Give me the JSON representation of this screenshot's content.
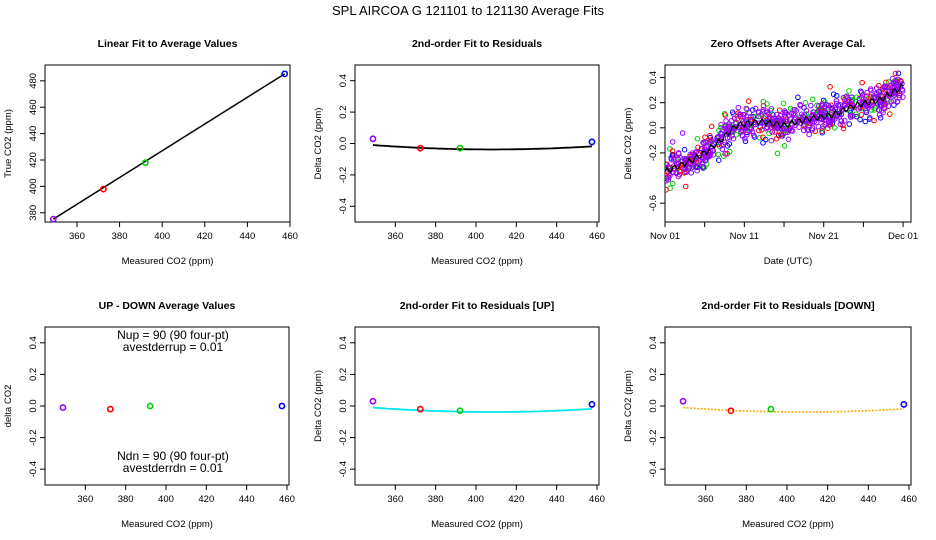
{
  "suptitle": "SPL   AIRCOA G   121101 to 121130   Average Fits",
  "chart_data": [
    {
      "type": "line",
      "title": "Linear Fit to Average Values",
      "xlabel": "Measured CO2 (ppm)",
      "ylabel": "True CO2 (ppm)",
      "xlim": [
        345,
        460
      ],
      "ylim": [
        373,
        492
      ],
      "xticks": [
        360,
        380,
        400,
        420,
        440,
        460
      ],
      "yticks": [
        380,
        400,
        420,
        440,
        460,
        480
      ],
      "points": [
        {
          "x": 348.9,
          "y": 375.2,
          "color": "#9900ff"
        },
        {
          "x": 372.4,
          "y": 397.9,
          "color": "#ff0000"
        },
        {
          "x": 392.1,
          "y": 418.0,
          "color": "#00cc00"
        },
        {
          "x": 457.5,
          "y": 485.3,
          "color": "#0000ff"
        }
      ],
      "fit_line": {
        "x": [
          348.9,
          457.5
        ],
        "y": [
          375.2,
          485.3
        ],
        "color": "#000000"
      }
    },
    {
      "type": "line",
      "title": "2nd-order Fit to Residuals",
      "xlabel": "Measured CO2 (ppm)",
      "ylabel": "Delta CO2 (ppm)",
      "xlim": [
        340,
        461
      ],
      "ylim": [
        -0.5,
        0.5
      ],
      "xticks": [
        360,
        380,
        400,
        420,
        440,
        460
      ],
      "yticks": [
        -0.4,
        -0.2,
        0.0,
        0.2,
        0.4
      ],
      "points": [
        {
          "x": 348.9,
          "y": 0.03,
          "color": "#9900ff"
        },
        {
          "x": 372.4,
          "y": -0.03,
          "color": "#ff0000"
        },
        {
          "x": 392.1,
          "y": -0.03,
          "color": "#00cc00"
        },
        {
          "x": 457.5,
          "y": 0.01,
          "color": "#0000ff"
        }
      ],
      "fit_curve": {
        "a": 8.1e-06,
        "vertex_x": 408,
        "vertex_y": -0.038,
        "from": 348.9,
        "to": 457.5,
        "color": "#000000"
      }
    },
    {
      "type": "scatter",
      "title": "Zero Offsets After Average Cal.",
      "xlabel": "Date (UTC)",
      "ylabel": "Delta CO2 (ppm)",
      "xlim": [
        0,
        31
      ],
      "ylim": [
        -0.75,
        0.5
      ],
      "xtick_labels": [
        "Nov 01",
        "Nov 11",
        "Nov 21",
        "Dec 01"
      ],
      "xtick_values": [
        0,
        10,
        20,
        30
      ],
      "yticks": [
        -0.6,
        -0.2,
        0.0,
        0.2,
        0.4
      ],
      "trend": [
        {
          "x": 0,
          "y": -0.35
        },
        {
          "x": 3,
          "y": -0.27
        },
        {
          "x": 5,
          "y": -0.2
        },
        {
          "x": 7,
          "y": -0.1
        },
        {
          "x": 9,
          "y": 0.02
        },
        {
          "x": 12,
          "y": 0.05
        },
        {
          "x": 15,
          "y": 0.02
        },
        {
          "x": 18,
          "y": 0.07
        },
        {
          "x": 21,
          "y": 0.1
        },
        {
          "x": 24,
          "y": 0.18
        },
        {
          "x": 27,
          "y": 0.22
        },
        {
          "x": 30,
          "y": 0.33
        }
      ],
      "series": [
        {
          "name": "purple",
          "color": "#9900ff"
        },
        {
          "name": "red",
          "color": "#ff0000"
        },
        {
          "name": "green",
          "color": "#00cc00"
        },
        {
          "name": "blue",
          "color": "#0000ff"
        }
      ]
    },
    {
      "type": "scatter",
      "title": "UP - DOWN Average Values",
      "xlabel": "Measured CO2 (ppm)",
      "ylabel": "delta CO2",
      "xlim": [
        340,
        461
      ],
      "ylim": [
        -0.5,
        0.5
      ],
      "xticks": [
        360,
        380,
        400,
        420,
        440,
        460
      ],
      "yticks": [
        -0.4,
        -0.2,
        0.0,
        0.2,
        0.4
      ],
      "points": [
        {
          "x": 348.9,
          "y": -0.01,
          "color": "#9900ff"
        },
        {
          "x": 372.4,
          "y": -0.02,
          "color": "#ff0000"
        },
        {
          "x": 392.1,
          "y": 0.0,
          "color": "#00cc00"
        },
        {
          "x": 457.5,
          "y": 0.0,
          "color": "#0000ff"
        }
      ],
      "annotations": [
        "Nup = 90 (90 four-pt)",
        "avestderrup =  0.01",
        "Ndn = 90 (90 four-pt)",
        "avestderrdn =  0.01"
      ]
    },
    {
      "type": "line",
      "title": "2nd-order Fit to Residuals [UP]",
      "xlabel": "Measured CO2 (ppm)",
      "ylabel": "Delta CO2 (ppm)",
      "xlim": [
        340,
        461
      ],
      "ylim": [
        -0.5,
        0.5
      ],
      "xticks": [
        360,
        380,
        400,
        420,
        440,
        460
      ],
      "yticks": [
        -0.4,
        -0.2,
        0.0,
        0.2,
        0.4
      ],
      "points": [
        {
          "x": 348.9,
          "y": 0.03,
          "color": "#9900ff"
        },
        {
          "x": 372.4,
          "y": -0.02,
          "color": "#ff0000"
        },
        {
          "x": 392.1,
          "y": -0.03,
          "color": "#00cc00"
        },
        {
          "x": 457.5,
          "y": 0.01,
          "color": "#0000ff"
        }
      ],
      "fit_curve": {
        "a": 8.1e-06,
        "vertex_x": 408,
        "vertex_y": -0.038,
        "from": 348.9,
        "to": 457.5,
        "color": "#00e5ee"
      }
    },
    {
      "type": "line",
      "title": "2nd-order Fit to Residuals [DOWN]",
      "xlabel": "Measured CO2 (ppm)",
      "ylabel": "Delta CO2 (ppm)",
      "xlim": [
        340,
        461
      ],
      "ylim": [
        -0.5,
        0.5
      ],
      "xticks": [
        360,
        380,
        400,
        420,
        440,
        460
      ],
      "yticks": [
        -0.4,
        -0.2,
        0.0,
        0.2,
        0.4
      ],
      "points": [
        {
          "x": 348.9,
          "y": 0.03,
          "color": "#9900ff"
        },
        {
          "x": 372.4,
          "y": -0.03,
          "color": "#ff0000"
        },
        {
          "x": 392.1,
          "y": -0.02,
          "color": "#00cc00"
        },
        {
          "x": 457.5,
          "y": 0.01,
          "color": "#0000ff"
        }
      ],
      "fit_curve": {
        "a": 8.1e-06,
        "vertex_x": 408,
        "vertex_y": -0.038,
        "from": 348.9,
        "to": 457.5,
        "color": "#ffaa00",
        "dashed": true
      }
    }
  ]
}
